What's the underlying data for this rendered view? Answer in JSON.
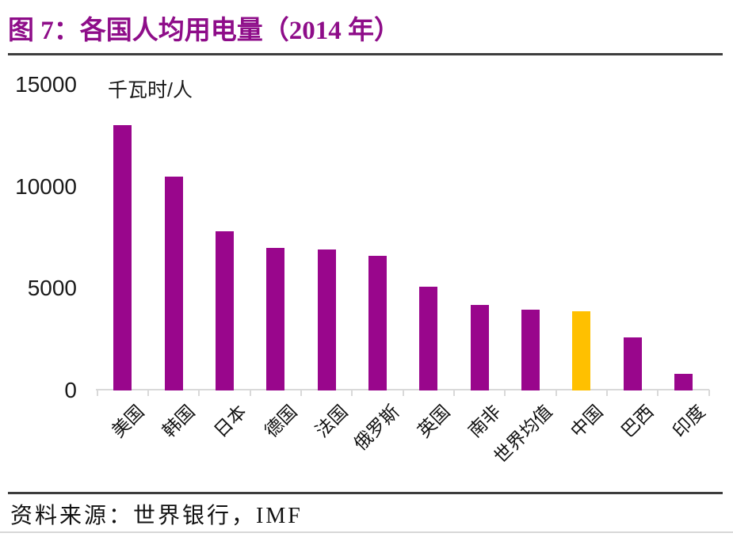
{
  "figure": {
    "title": "图 7：各国人均用电量（2014 年）",
    "source": "资料来源：世界银行，IMF"
  },
  "chart_data": {
    "type": "bar",
    "title": "各国人均用电量（2014 年）",
    "ylabel": "千瓦时/人",
    "xlabel": "",
    "categories": [
      "美国",
      "韩国",
      "日本",
      "德国",
      "法国",
      "俄罗斯",
      "英国",
      "南非",
      "世界均值",
      "中国",
      "巴西",
      "印度"
    ],
    "category_slugs": [
      "usa",
      "south-korea",
      "japan",
      "germany",
      "france",
      "russia",
      "uk",
      "south-africa",
      "world-average",
      "china",
      "brazil",
      "india"
    ],
    "values": [
      13000,
      10500,
      7800,
      7000,
      6900,
      6600,
      5100,
      4200,
      3950,
      3900,
      2600,
      800
    ],
    "ylim": [
      0,
      15000
    ],
    "yticks": [
      15000,
      10000,
      5000,
      0
    ],
    "grid": false,
    "legend": false,
    "bar_color": "#99068C",
    "highlight_category": "中国",
    "highlight_color": "#FFC000",
    "axis_color": "#D9D9D9",
    "title_color": "#8E0D89"
  }
}
